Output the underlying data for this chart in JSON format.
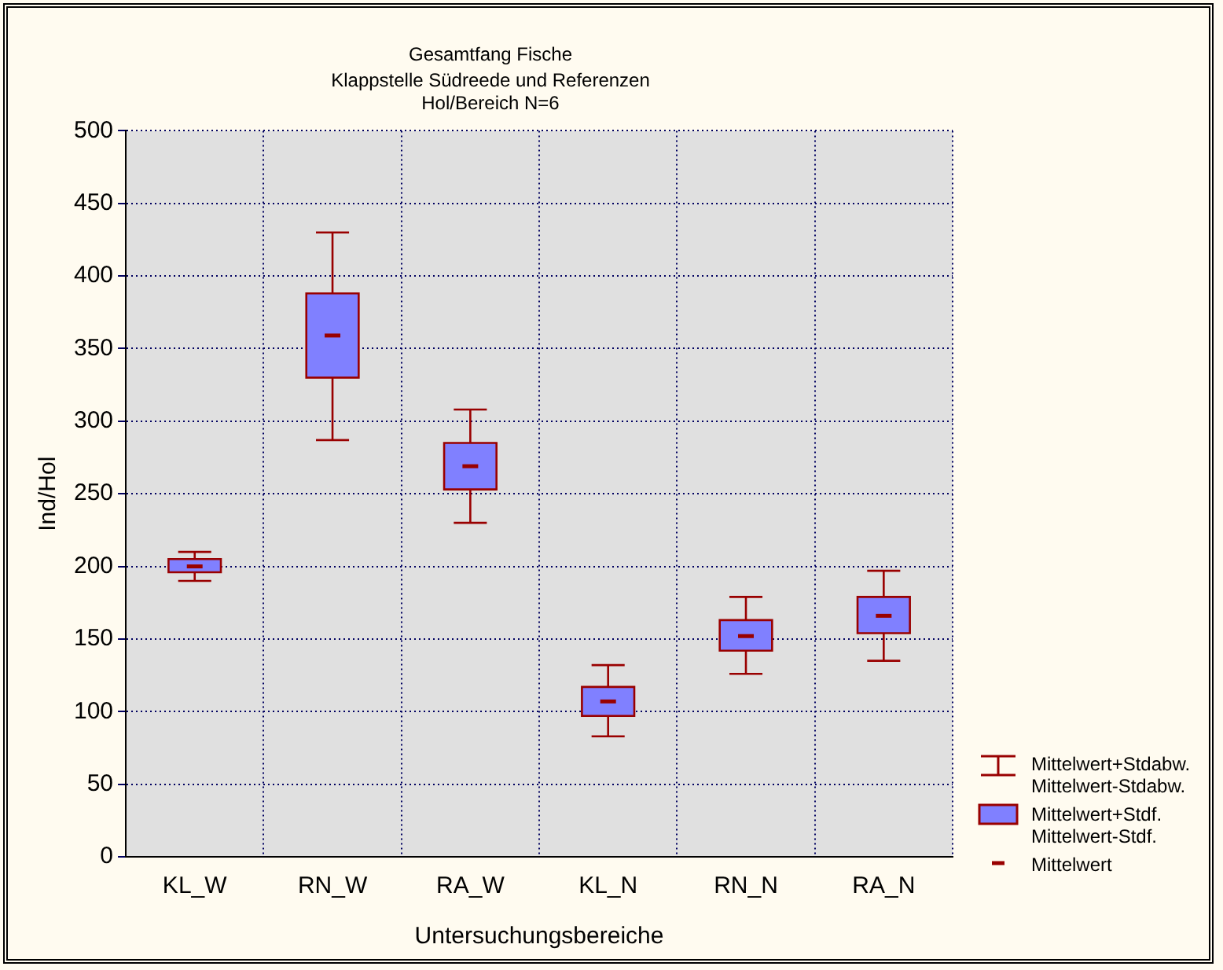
{
  "chart_data": {
    "type": "box",
    "title": "Gesamtfang Fische",
    "subtitle": [
      "Klappstelle Südreede und Referenzen",
      "Hol/Bereich N=6"
    ],
    "xlabel": "Untersuchungsbereiche",
    "ylabel": "Ind/Hol",
    "categories": [
      "KL_W",
      "RN_W",
      "RA_W",
      "KL_N",
      "RN_N",
      "RA_N"
    ],
    "boxes": [
      {
        "low": 190,
        "q1": 196,
        "median": 200,
        "q3": 205,
        "high": 210
      },
      {
        "low": 287,
        "q1": 330,
        "median": 359,
        "q3": 388,
        "high": 430
      },
      {
        "low": 230,
        "q1": 253,
        "median": 269,
        "q3": 285,
        "high": 308
      },
      {
        "low": 83,
        "q1": 97,
        "median": 107,
        "q3": 117,
        "high": 132
      },
      {
        "low": 126,
        "q1": 142,
        "median": 152,
        "q3": 163,
        "high": 179
      },
      {
        "low": 135,
        "q1": 154,
        "median": 166,
        "q3": 179,
        "high": 197
      }
    ],
    "color": "#8080ff",
    "ylim": [
      0,
      500
    ],
    "yticks": [
      0,
      50,
      100,
      150,
      200,
      250,
      300,
      350,
      400,
      450,
      500
    ],
    "grid": true,
    "annotations": [
      "Mittelwert+Stdabw.",
      "Mittelwert-Stdabw.",
      "Mittelwert+Stdf.",
      "Mittelwert-Stdf.",
      "Mittelwert"
    ]
  }
}
